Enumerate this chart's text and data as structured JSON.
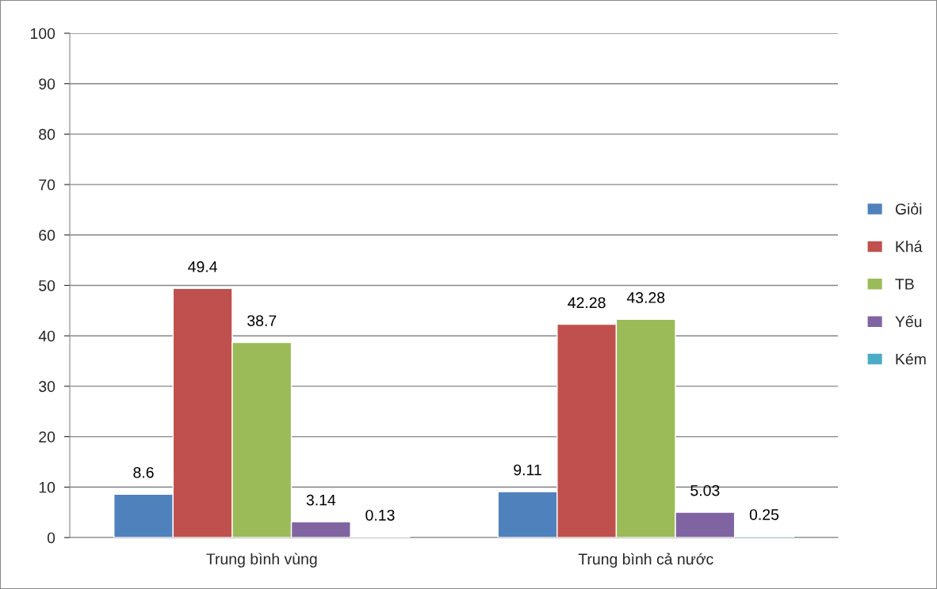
{
  "chart_data": {
    "type": "bar",
    "categories": [
      "Trung bình vùng",
      "Trung bình cả nước"
    ],
    "series": [
      {
        "name": "Giỏi",
        "color": "#4f81bd",
        "values": [
          8.6,
          9.11
        ]
      },
      {
        "name": "Khá",
        "color": "#c0504d",
        "values": [
          49.4,
          42.28
        ]
      },
      {
        "name": "TB",
        "color": "#9bbb59",
        "values": [
          38.7,
          43.28
        ]
      },
      {
        "name": "Yếu",
        "color": "#8064a2",
        "values": [
          3.14,
          5.03
        ]
      },
      {
        "name": "Kém",
        "color": "#4bacc6",
        "values": [
          0.13,
          0.25
        ]
      }
    ],
    "ylim": [
      0,
      100
    ],
    "yticks": [
      0,
      10,
      20,
      30,
      40,
      50,
      60,
      70,
      80,
      90,
      100
    ],
    "grid": "y",
    "legend": "right",
    "data_labels": true
  }
}
